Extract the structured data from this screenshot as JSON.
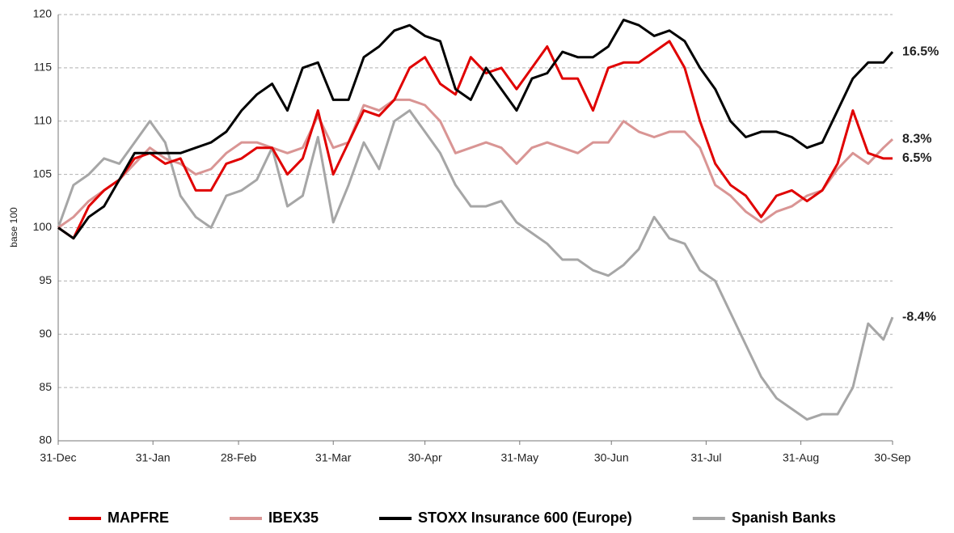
{
  "chart_data": {
    "type": "line",
    "y_label": "base 100",
    "x": [
      0,
      5,
      10,
      15,
      20,
      25,
      30,
      35,
      40,
      45,
      50,
      55,
      60,
      65,
      70,
      75,
      80,
      85,
      90,
      95,
      100,
      105,
      110,
      115,
      120,
      125,
      130,
      135,
      140,
      145,
      150,
      155,
      160,
      165,
      170,
      175,
      180,
      185,
      190,
      195,
      200,
      205,
      210,
      215,
      220,
      225,
      230,
      235,
      240,
      245,
      250,
      255,
      260,
      265,
      270,
      273
    ],
    "xlim": [
      0,
      273
    ],
    "xticks": [
      {
        "value": 0,
        "label": "31-Dec"
      },
      {
        "value": 31,
        "label": "31-Jan"
      },
      {
        "value": 59,
        "label": "28-Feb"
      },
      {
        "value": 90,
        "label": "31-Mar"
      },
      {
        "value": 120,
        "label": "30-Apr"
      },
      {
        "value": 151,
        "label": "31-May"
      },
      {
        "value": 181,
        "label": "30-Jun"
      },
      {
        "value": 212,
        "label": "31-Jul"
      },
      {
        "value": 243,
        "label": "31-Aug"
      },
      {
        "value": 273,
        "label": "30-Sep"
      }
    ],
    "ylim": [
      80,
      120
    ],
    "yticks": [
      80,
      85,
      90,
      95,
      100,
      105,
      110,
      115,
      120
    ],
    "grid": true,
    "legend": "bottom",
    "series": [
      {
        "name": "MAPFRE",
        "color": "#e00000",
        "end_label": "6.5%",
        "values": [
          100,
          99,
          102,
          103.5,
          104.5,
          106.5,
          107,
          106,
          106.5,
          103.5,
          103.5,
          106,
          106.5,
          107.5,
          107.5,
          105,
          106.5,
          111,
          105,
          108,
          111,
          110.5,
          112,
          115,
          116,
          113.5,
          112.5,
          116,
          114.5,
          115,
          113,
          115,
          117,
          114,
          114,
          111,
          115,
          115.5,
          115.5,
          116.5,
          117.5,
          115,
          110,
          106,
          104,
          103,
          101,
          103,
          103.5,
          102.5,
          103.5,
          106,
          111,
          107,
          106.5,
          106.5
        ]
      },
      {
        "name": "IBEX35",
        "color": "#d99594",
        "end_label": "8.3%",
        "values": [
          100,
          101,
          102.5,
          103.5,
          104.5,
          106,
          107.5,
          106.5,
          106,
          105,
          105.5,
          107,
          108,
          108,
          107.5,
          107,
          107.5,
          110.5,
          107.5,
          108,
          111.5,
          111,
          112,
          112,
          111.5,
          110,
          107,
          107.5,
          108,
          107.5,
          106,
          107.5,
          108,
          107.5,
          107,
          108,
          108,
          110,
          109,
          108.5,
          109,
          109,
          107.5,
          104,
          103,
          101.5,
          100.5,
          101.5,
          102,
          103,
          103.5,
          105.5,
          107,
          106,
          107.5,
          108.3
        ]
      },
      {
        "name": "STOXX Insurance 600 (Europe)",
        "color": "#000000",
        "end_label": "16.5%",
        "values": [
          100,
          99,
          101,
          102,
          104.5,
          107,
          107,
          107,
          107,
          107.5,
          108,
          109,
          111,
          112.5,
          113.5,
          111,
          115,
          115.5,
          112,
          112,
          116,
          117,
          118.5,
          119,
          118,
          117.5,
          113,
          112,
          115,
          113,
          111,
          114,
          114.5,
          116.5,
          116,
          116,
          117,
          119.5,
          119,
          118,
          118.5,
          117.5,
          115,
          113,
          110,
          108.5,
          109,
          109,
          108.5,
          107.5,
          108,
          111,
          114,
          115.5,
          115.5,
          116.5
        ]
      },
      {
        "name": "Spanish Banks",
        "color": "#a6a6a6",
        "end_label": "-8.4%",
        "values": [
          100,
          104,
          105,
          106.5,
          106,
          108,
          110,
          108,
          103,
          101,
          100,
          103,
          103.5,
          104.5,
          107.5,
          102,
          103,
          108.5,
          100.5,
          104,
          108,
          105.5,
          110,
          111,
          109,
          107,
          104,
          102,
          102,
          102.5,
          100.5,
          99.5,
          98.5,
          97,
          97,
          96,
          95.5,
          96.5,
          98,
          101,
          99,
          98.5,
          96,
          95,
          92,
          89,
          86,
          84,
          83,
          82,
          82.5,
          82.5,
          85,
          91,
          89.5,
          91.6
        ]
      }
    ]
  }
}
